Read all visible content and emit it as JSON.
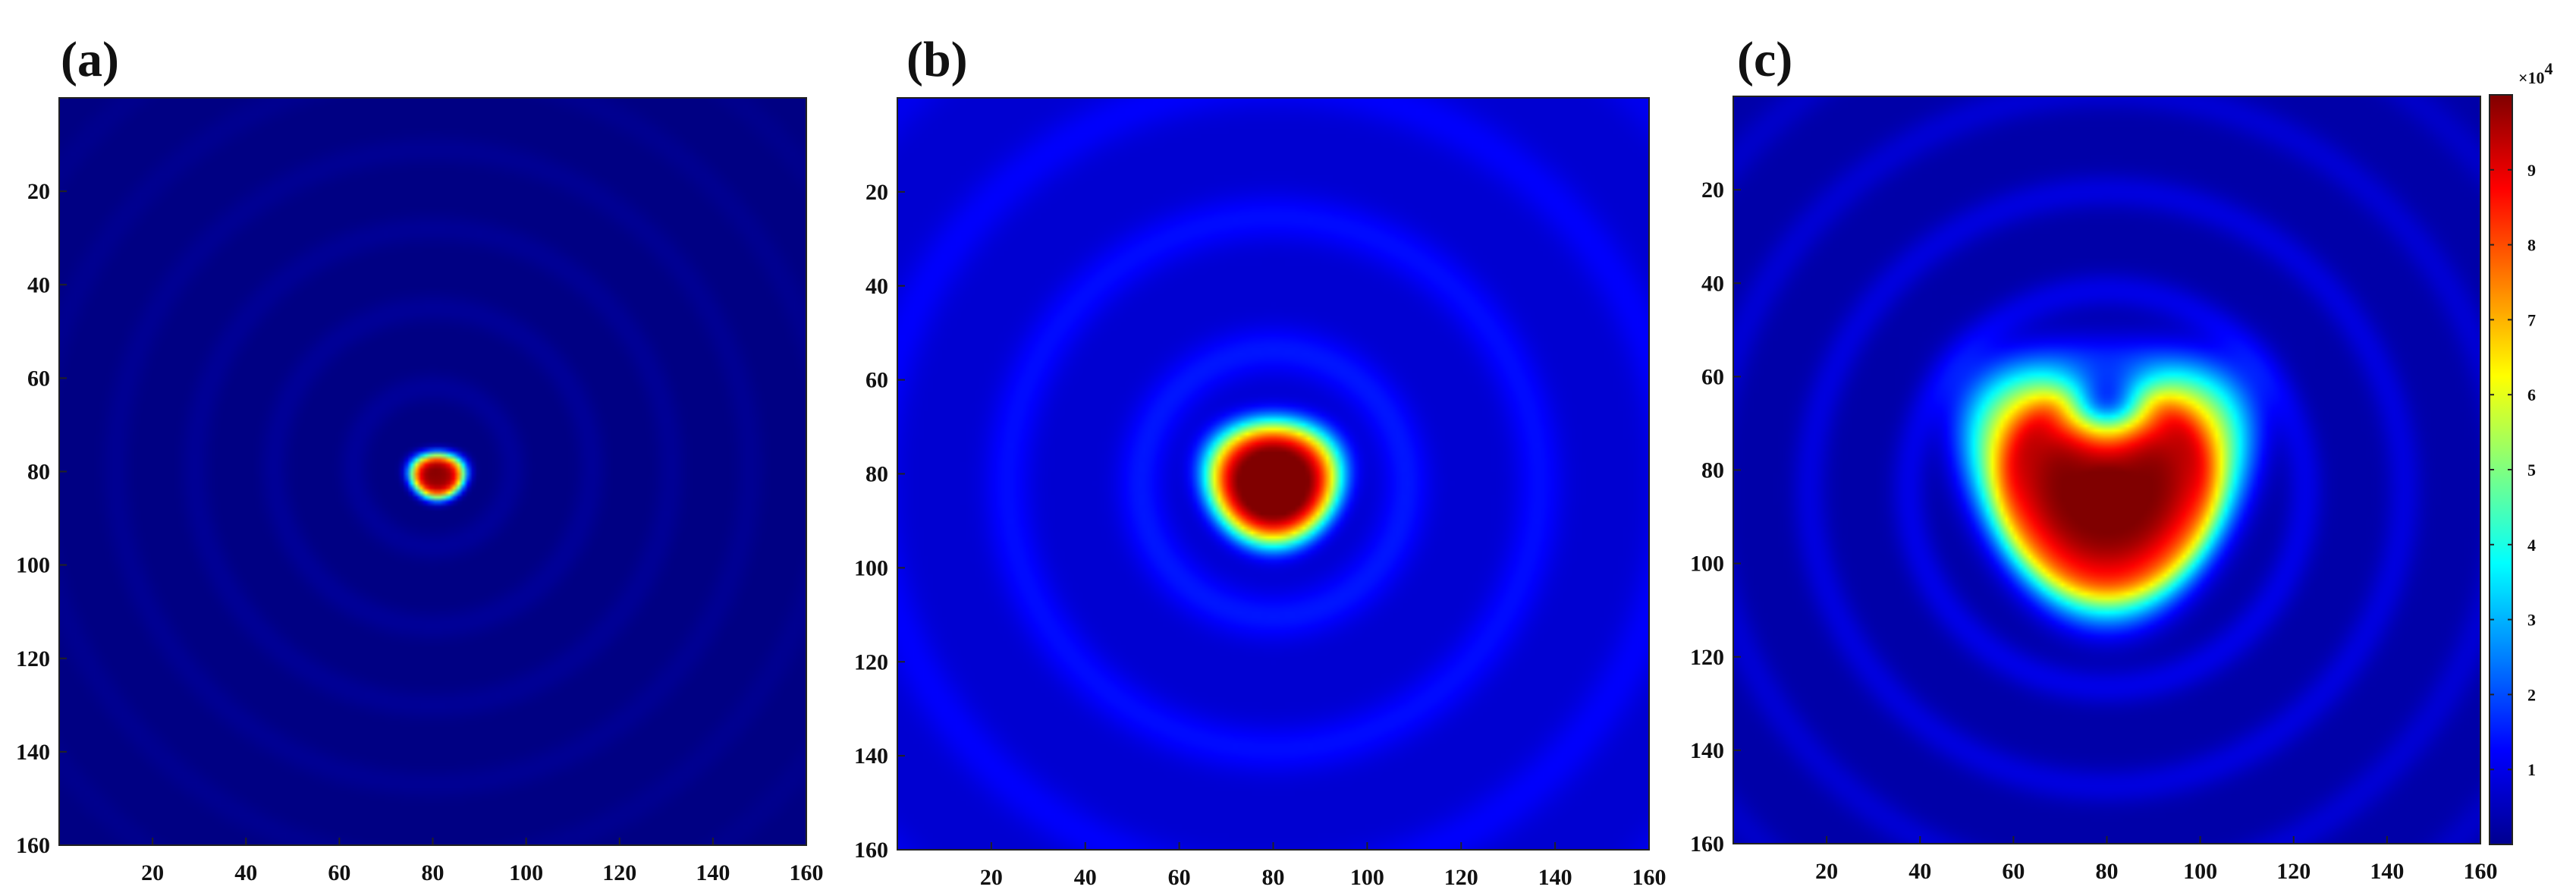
{
  "chart_data": [
    {
      "type": "heatmap",
      "panel_label": "(a)",
      "x_ticks": [
        20,
        40,
        60,
        80,
        100,
        120,
        140,
        160
      ],
      "y_ticks": [
        20,
        40,
        60,
        80,
        100,
        120,
        140,
        160
      ],
      "xlim": [
        0,
        160
      ],
      "ylim": [
        160,
        0
      ],
      "y_axis_direction": "top-to-bottom",
      "hotspot": {
        "x": 81,
        "y": 81,
        "width": 12,
        "height": 10,
        "peak": 97000
      },
      "ring_pattern": {
        "center_x": 80,
        "center_y": 79,
        "rings": 5,
        "intensity": "low"
      },
      "background_level": 300
    },
    {
      "type": "heatmap",
      "panel_label": "(b)",
      "x_ticks": [
        20,
        40,
        60,
        80,
        100,
        120,
        140,
        160
      ],
      "y_ticks": [
        20,
        40,
        60,
        80,
        100,
        120,
        140,
        160
      ],
      "xlim": [
        0,
        160
      ],
      "ylim": [
        160,
        0
      ],
      "y_axis_direction": "top-to-bottom",
      "hotspot": {
        "x": 80,
        "y": 82,
        "width": 28,
        "height": 26,
        "peak": 97000
      },
      "ring_pattern": {
        "center_x": 80,
        "center_y": 82,
        "rings": 3,
        "intensity": "medium"
      },
      "background_level": 8000
    },
    {
      "type": "heatmap",
      "panel_label": "(c)",
      "x_ticks": [
        20,
        40,
        60,
        80,
        100,
        120,
        140,
        160
      ],
      "y_ticks": [
        20,
        40,
        60,
        80,
        100,
        120,
        140,
        160
      ],
      "xlim": [
        0,
        160
      ],
      "ylim": [
        160,
        0
      ],
      "y_axis_direction": "top-to-bottom",
      "hotspot": {
        "x": 80,
        "y": 84,
        "width": 56,
        "height": 52,
        "peak": 97000,
        "shape": "kidney"
      },
      "ring_pattern": {
        "center_x": 80,
        "center_y": 84,
        "rings": 4,
        "intensity": "medium"
      },
      "background_level": 4000
    }
  ],
  "colorbar": {
    "colormap": "jet",
    "range": [
      0,
      100000
    ],
    "tick_values": [
      1,
      2,
      3,
      4,
      5,
      6,
      7,
      8,
      9
    ],
    "tick_labels": [
      "1",
      "2",
      "3",
      "4",
      "5",
      "6",
      "7",
      "8",
      "9"
    ],
    "multiplier_base": "×10",
    "multiplier_exponent": "4",
    "placement": "right"
  },
  "colors": {
    "jet_low": "#00008f",
    "jet_high": "#800000",
    "axis": "#222222"
  }
}
